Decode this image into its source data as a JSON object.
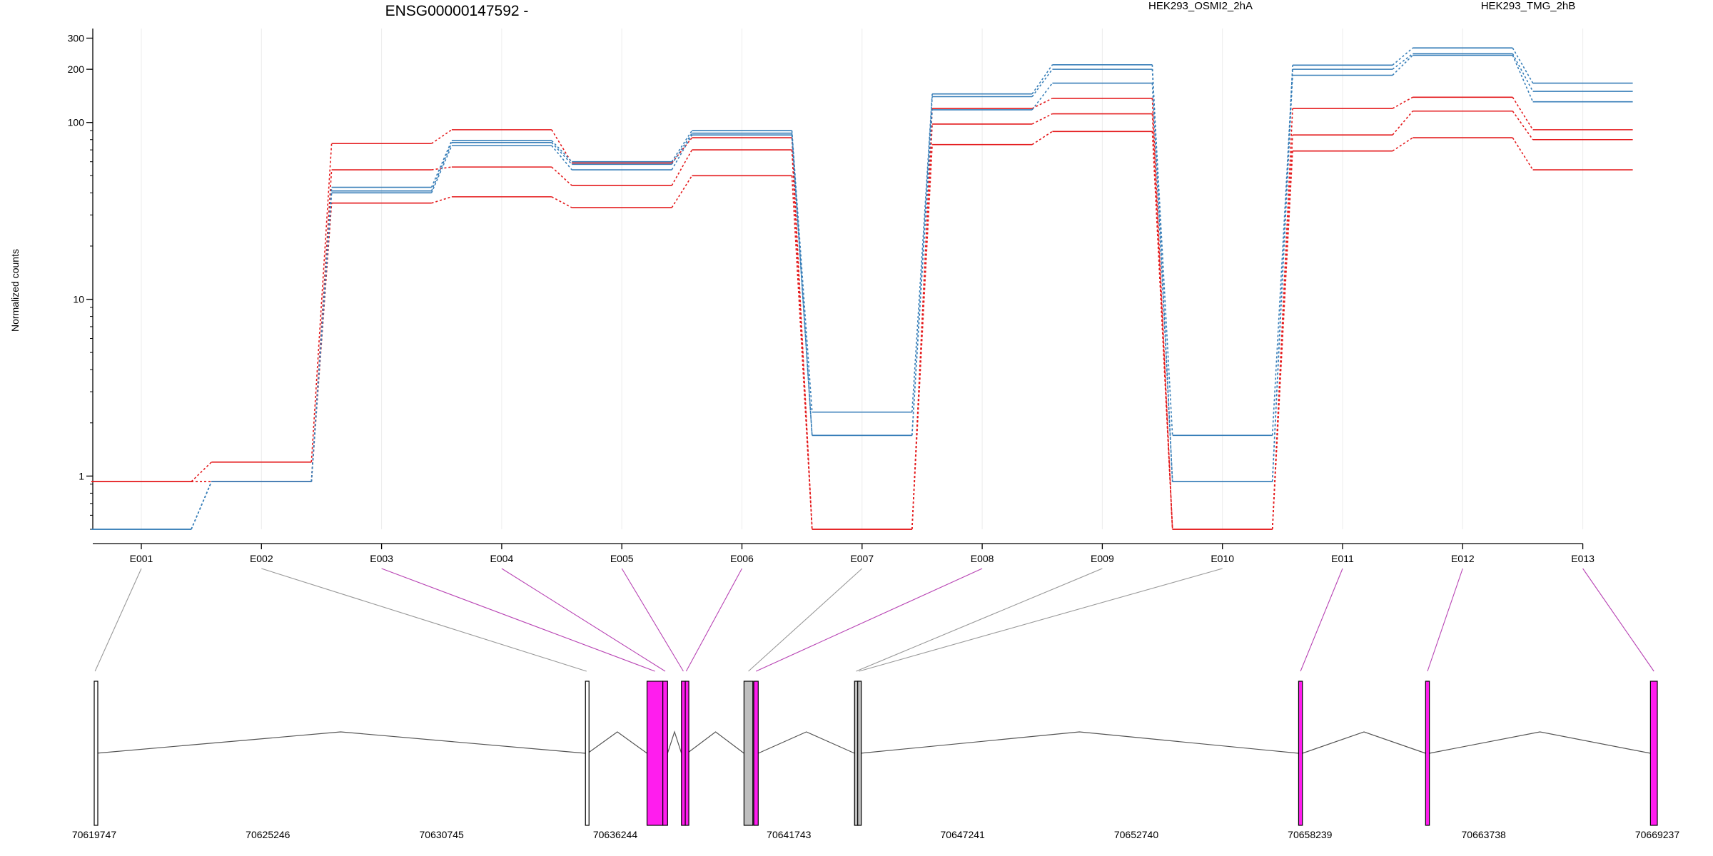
{
  "title": "ENSG00000147592 -",
  "ylabel": "Normalized counts",
  "legend": [
    {
      "label": "HEK293_OSMI2_2hA",
      "color": "#e41a1c"
    },
    {
      "label": "HEK293_TMG_2hB",
      "color": "#377eb8"
    }
  ],
  "chart_data": {
    "type": "line",
    "title": "ENSG00000147592 -",
    "xlabel": "",
    "ylabel": "Normalized counts",
    "y_scale": "log",
    "y_ticks": [
      1,
      10,
      100,
      200,
      300
    ],
    "y_tick_labels": [
      "1",
      "10",
      "100",
      "200",
      "300"
    ],
    "ylim": [
      0.5,
      340
    ],
    "grid": "vertical",
    "legend_position": "top",
    "categories": [
      "E001",
      "E002",
      "E003",
      "E004",
      "E005",
      "E006",
      "E007",
      "E008",
      "E009",
      "E010",
      "E011",
      "E012",
      "E013"
    ],
    "series": [
      {
        "group": "HEK293_OSMI2_2hA",
        "color": "#e41a1c",
        "values": [
          0.93,
          1.2,
          76,
          91,
          59,
          82,
          0.5,
          120,
          137,
          0.5,
          120,
          139,
          91
        ]
      },
      {
        "group": "HEK293_OSMI2_2hA",
        "color": "#e41a1c",
        "values": [
          0.93,
          0.93,
          54,
          56,
          44,
          70,
          0.5,
          98,
          112,
          0.5,
          85,
          116,
          80
        ]
      },
      {
        "group": "HEK293_OSMI2_2hA",
        "color": "#e41a1c",
        "values": [
          0.93,
          0.93,
          35,
          38,
          33,
          50,
          0.5,
          75,
          89,
          0.5,
          69,
          82,
          54
        ]
      },
      {
        "group": "HEK293_TMG_2hB",
        "color": "#377eb8",
        "values": [
          0.5,
          0.93,
          43,
          79,
          60,
          90,
          2.3,
          145,
          212,
          0.93,
          211,
          264,
          167
        ]
      },
      {
        "group": "HEK293_TMG_2hB",
        "color": "#377eb8",
        "values": [
          0.5,
          0.93,
          41,
          77,
          58,
          87,
          1.7,
          140,
          200,
          1.7,
          200,
          245,
          150
        ]
      },
      {
        "group": "HEK293_TMG_2hB",
        "color": "#377eb8",
        "values": [
          0.5,
          0.93,
          40,
          74,
          54,
          85,
          1.7,
          118,
          167,
          0.93,
          185,
          240,
          131
        ]
      }
    ],
    "genomic_axis": {
      "tick_labels": [
        "70619747",
        "70625246",
        "70630745",
        "70636244",
        "70641743",
        "70647241",
        "70652740",
        "70658239",
        "70663738",
        "70669237"
      ],
      "start": 70619747,
      "end": 70669237
    },
    "exons": [
      {
        "id": "E001",
        "start": 70619747,
        "end": 70619800,
        "fill": "#ffffff",
        "link_color": "#999999"
      },
      {
        "id": "E002",
        "start": 70635300,
        "end": 70635370,
        "fill": "#ffffff",
        "link_color": "#999999"
      },
      {
        "id": "E003",
        "start": 70637250,
        "end": 70637750,
        "fill": "#ff1dee",
        "link_color": "#b844b4"
      },
      {
        "id": "E004",
        "start": 70637750,
        "end": 70637900,
        "fill": "#ff1dee",
        "link_color": "#b844b4"
      },
      {
        "id": "E005",
        "start": 70638340,
        "end": 70638460,
        "fill": "#ff1dee",
        "link_color": "#b844b4"
      },
      {
        "id": "E006",
        "start": 70638460,
        "end": 70638520,
        "fill": "#ff1dee",
        "link_color": "#b844b4"
      },
      {
        "id": "E007",
        "start": 70640320,
        "end": 70640600,
        "fill": "#bfbfbf",
        "link_color": "#999999"
      },
      {
        "id": "E008",
        "start": 70640630,
        "end": 70640770,
        "fill": "#ff1dee",
        "link_color": "#b844b4"
      },
      {
        "id": "E009",
        "start": 70643820,
        "end": 70643920,
        "fill": "#bfbfbf",
        "link_color": "#999999"
      },
      {
        "id": "E010",
        "start": 70643920,
        "end": 70644000,
        "fill": "#bfbfbf",
        "link_color": "#999999"
      },
      {
        "id": "E011",
        "start": 70657880,
        "end": 70658000,
        "fill": "#ff1dee",
        "link_color": "#b844b4"
      },
      {
        "id": "E012",
        "start": 70661900,
        "end": 70662020,
        "fill": "#ff1dee",
        "link_color": "#b844b4"
      },
      {
        "id": "E013",
        "start": 70669020,
        "end": 70669237,
        "fill": "#ff1dee",
        "link_color": "#b844b4"
      }
    ]
  }
}
